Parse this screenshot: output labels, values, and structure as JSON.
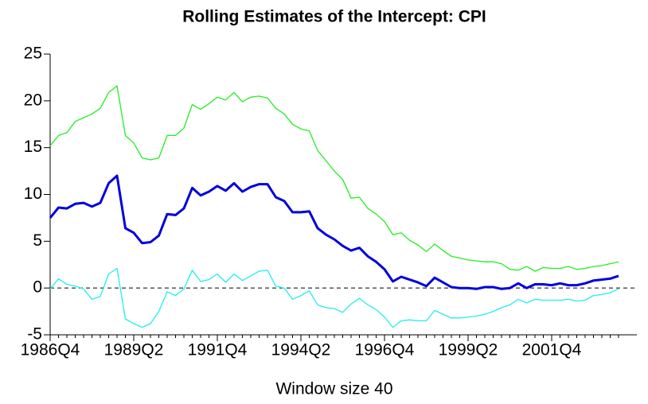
{
  "chart_data": {
    "type": "line",
    "title": "Rolling Estimates of the Intercept: CPI",
    "x_label": "Window size 40",
    "categories": [
      "1986Q4",
      null,
      null,
      null,
      null,
      null,
      null,
      null,
      null,
      null,
      "1989Q2",
      null,
      null,
      null,
      null,
      null,
      null,
      null,
      null,
      null,
      "1991Q4",
      null,
      null,
      null,
      null,
      null,
      null,
      null,
      null,
      null,
      "1994Q2",
      null,
      null,
      null,
      null,
      null,
      null,
      null,
      null,
      null,
      "1996Q4",
      null,
      null,
      null,
      null,
      null,
      null,
      null,
      null,
      null,
      "1999Q2",
      null,
      null,
      null,
      null,
      null,
      null,
      null,
      null,
      null,
      "2001Q4",
      null,
      null,
      null,
      null,
      null,
      null,
      null,
      null
    ],
    "series": [
      {
        "color": "#22ee22",
        "width": 1.3,
        "values": [
          15.2,
          16.3,
          16.6,
          17.8,
          18.2,
          18.6,
          19.2,
          20.9,
          21.6,
          16.3,
          15.5,
          13.9,
          13.7,
          13.9,
          16.3,
          16.3,
          17.1,
          19.6,
          19.1,
          19.7,
          20.4,
          20.1,
          20.9,
          19.9,
          20.4,
          20.5,
          20.3,
          19.2,
          18.6,
          17.5,
          17.0,
          16.8,
          14.7,
          13.6,
          12.5,
          11.6,
          9.6,
          9.7,
          8.5,
          7.9,
          7.1,
          5.7,
          5.9,
          5.1,
          4.6,
          3.9,
          4.7,
          4.0,
          3.4,
          3.2,
          3.0,
          2.9,
          2.8,
          2.8,
          2.6,
          2.0,
          1.9,
          2.3,
          1.8,
          2.2,
          2.1,
          2.1,
          2.3,
          2.0,
          2.1,
          2.3,
          2.4,
          2.6,
          2.8
        ]
      },
      {
        "color": "#0000dd",
        "width": 3,
        "values": [
          7.5,
          8.6,
          8.5,
          9.0,
          9.1,
          8.7,
          9.1,
          11.2,
          12.0,
          6.4,
          5.9,
          4.8,
          4.9,
          5.6,
          7.9,
          7.8,
          8.5,
          10.7,
          9.9,
          10.3,
          10.9,
          10.4,
          11.2,
          10.3,
          10.8,
          11.1,
          11.1,
          9.7,
          9.3,
          8.1,
          8.1,
          8.2,
          6.4,
          5.7,
          5.2,
          4.5,
          4.0,
          4.3,
          3.4,
          2.8,
          2.0,
          0.7,
          1.2,
          0.9,
          0.6,
          0.2,
          1.1,
          0.6,
          0.1,
          0.0,
          0.0,
          -0.1,
          0.1,
          0.1,
          -0.1,
          0.0,
          0.5,
          0.0,
          0.4,
          0.4,
          0.3,
          0.5,
          0.3,
          0.3,
          0.5,
          0.8,
          0.9,
          1.0,
          1.3
        ]
      },
      {
        "color": "#22eeee",
        "width": 1.3,
        "values": [
          -0.1,
          1.0,
          0.4,
          0.2,
          -0.1,
          -1.2,
          -0.9,
          1.5,
          2.1,
          -3.3,
          -3.8,
          -4.2,
          -3.8,
          -2.5,
          -0.4,
          -0.8,
          -0.1,
          1.9,
          0.7,
          0.9,
          1.5,
          0.6,
          1.5,
          0.8,
          1.3,
          1.8,
          1.9,
          0.2,
          0.0,
          -1.2,
          -0.8,
          -0.3,
          -1.8,
          -2.1,
          -2.2,
          -2.6,
          -1.7,
          -1.1,
          -1.8,
          -2.3,
          -3.1,
          -4.2,
          -3.5,
          -3.4,
          -3.5,
          -3.5,
          -2.4,
          -2.8,
          -3.2,
          -3.2,
          -3.1,
          -3.0,
          -2.8,
          -2.5,
          -2.1,
          -1.8,
          -1.2,
          -1.6,
          -1.2,
          -1.3,
          -1.3,
          -1.3,
          -1.2,
          -1.4,
          -1.3,
          -0.8,
          -0.7,
          -0.5,
          -0.1
        ]
      }
    ],
    "ylim": [
      -5,
      25
    ],
    "yticks": [
      -5,
      0,
      5,
      10,
      15,
      20,
      25
    ],
    "reference_line": 0
  }
}
